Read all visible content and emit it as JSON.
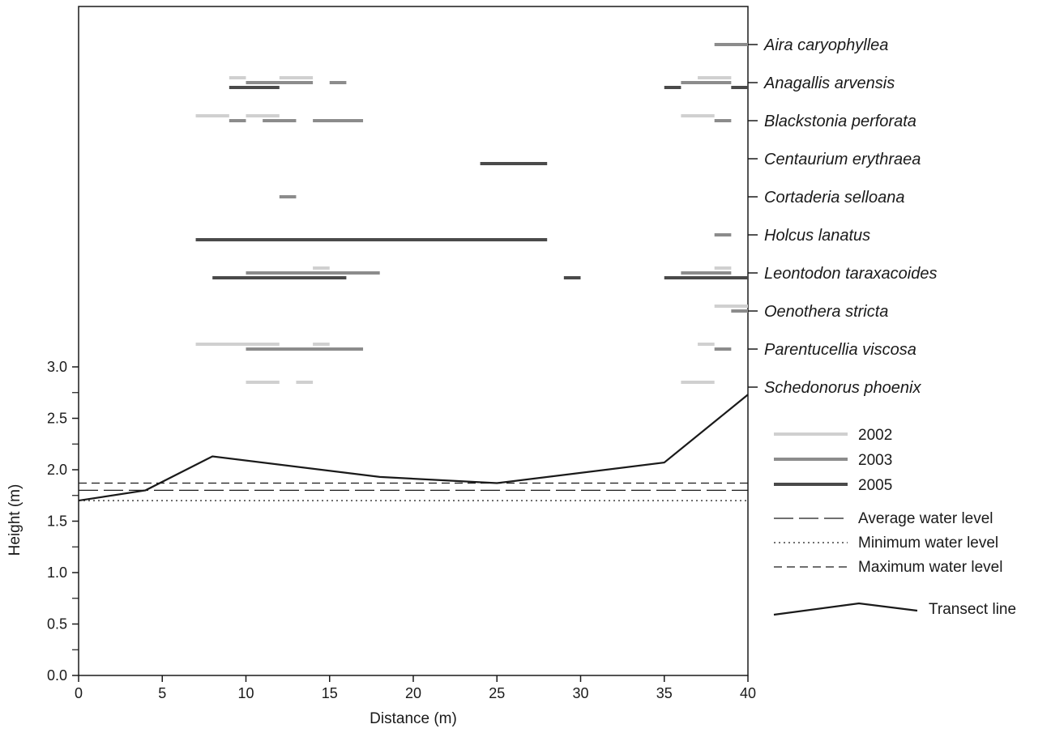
{
  "chart_data": {
    "type": "line",
    "xlabel": "Distance (m)",
    "ylabel": "Height (m)",
    "xlim": [
      0,
      40
    ],
    "ylim": [
      0,
      3.0
    ],
    "x_ticks": [
      "0",
      "5",
      "10",
      "15",
      "20",
      "25",
      "30",
      "35",
      "40"
    ],
    "y_ticks": [
      "0.0",
      "0.5",
      "1.0",
      "1.5",
      "2.0",
      "2.5",
      "3.0"
    ],
    "transect": {
      "name": "Transect line",
      "x": [
        0,
        4,
        8,
        18,
        25,
        35,
        40
      ],
      "y": [
        1.7,
        1.8,
        2.13,
        1.93,
        1.87,
        2.07,
        2.73
      ]
    },
    "water_levels": [
      {
        "name": "Average water level",
        "value": 1.8,
        "style": "longdash"
      },
      {
        "name": "Minimum water level",
        "value": 1.7,
        "style": "dotted"
      },
      {
        "name": "Maximum water level",
        "value": 1.87,
        "style": "dashed"
      }
    ],
    "years": [
      {
        "name": "2002",
        "color": "#d0d0d0"
      },
      {
        "name": "2003",
        "color": "#8c8c8c"
      },
      {
        "name": "2005",
        "color": "#4a4a4a"
      }
    ],
    "species": [
      {
        "name": "Aira caryophyllea",
        "segments": {
          "2002": [],
          "2003": [
            [
              38,
              40
            ]
          ],
          "2005": []
        }
      },
      {
        "name": "Anagallis arvensis",
        "segments": {
          "2002": [
            [
              9,
              10
            ],
            [
              12,
              14
            ],
            [
              37,
              39
            ]
          ],
          "2003": [
            [
              10,
              14
            ],
            [
              15,
              16
            ],
            [
              36,
              39
            ]
          ],
          "2005": [
            [
              9,
              12
            ],
            [
              35,
              36
            ],
            [
              39,
              40
            ]
          ]
        }
      },
      {
        "name": "Blackstonia perforata",
        "segments": {
          "2002": [
            [
              7,
              9
            ],
            [
              10,
              12
            ],
            [
              36,
              38
            ]
          ],
          "2003": [
            [
              9,
              10
            ],
            [
              11,
              13
            ],
            [
              14,
              17
            ],
            [
              38,
              39
            ]
          ],
          "2005": []
        }
      },
      {
        "name": "Centaurium erythraea",
        "segments": {
          "2002": [],
          "2003": [],
          "2005": [
            [
              24,
              28
            ]
          ]
        }
      },
      {
        "name": "Cortaderia selloana",
        "segments": {
          "2002": [],
          "2003": [
            [
              12,
              13
            ]
          ],
          "2005": []
        }
      },
      {
        "name": "Holcus lanatus",
        "segments": {
          "2002": [],
          "2003": [
            [
              38,
              39
            ]
          ],
          "2005": [
            [
              7,
              28
            ]
          ]
        }
      },
      {
        "name": "Leontodon taraxacoides",
        "segments": {
          "2002": [
            [
              14,
              15
            ],
            [
              38,
              39
            ]
          ],
          "2003": [
            [
              10,
              18
            ],
            [
              36,
              39
            ]
          ],
          "2005": [
            [
              8,
              16
            ],
            [
              29,
              30
            ],
            [
              35,
              40
            ]
          ]
        }
      },
      {
        "name": "Oenothera stricta",
        "segments": {
          "2002": [
            [
              38,
              40
            ]
          ],
          "2003": [
            [
              39,
              40
            ]
          ],
          "2005": []
        }
      },
      {
        "name": "Parentucellia viscosa",
        "segments": {
          "2002": [
            [
              7,
              12
            ],
            [
              14,
              15
            ],
            [
              37,
              38
            ]
          ],
          "2003": [
            [
              10,
              17
            ],
            [
              38,
              39
            ]
          ],
          "2005": []
        }
      },
      {
        "name": "Schedonorus phoenix",
        "segments": {
          "2002": [
            [
              10,
              12
            ],
            [
              13,
              14
            ],
            [
              36,
              38
            ]
          ],
          "2003": [],
          "2005": []
        }
      }
    ],
    "legend": {
      "years": [
        "2002",
        "2003",
        "2005"
      ],
      "lines": [
        "Average water level",
        "Minimum water level",
        "Maximum water level"
      ],
      "transect": "Transect line"
    }
  }
}
